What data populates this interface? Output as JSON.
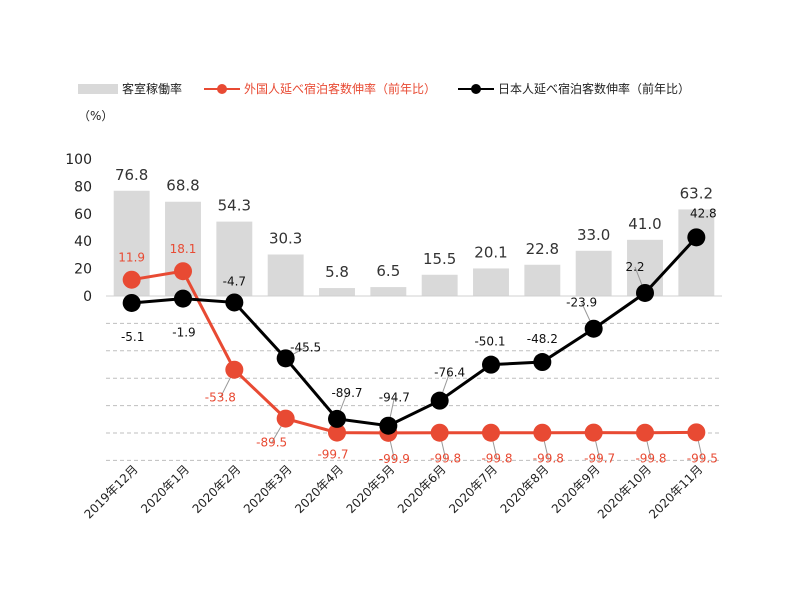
{
  "chart_data": {
    "type": "bar+line",
    "unit": "（%）",
    "categories": [
      "2019年12月",
      "2020年1月",
      "2020年2月",
      "2020年3月",
      "2020年4月",
      "2020年5月",
      "2020年6月",
      "2020年7月",
      "2020年8月",
      "2020年9月",
      "2020年10月",
      "2020年11月"
    ],
    "y_ticks": [
      100,
      80,
      60,
      40,
      20,
      0
    ],
    "ylim": [
      -120,
      100
    ],
    "grid": "dashed below zero",
    "legend_position": "top",
    "series": [
      {
        "name": "客室稼働率",
        "kind": "bar",
        "color": "#d9d9d9",
        "label_color": "#333333",
        "values": [
          76.8,
          68.8,
          54.3,
          30.3,
          5.8,
          6.5,
          15.5,
          20.1,
          22.8,
          33.0,
          41.0,
          63.2
        ],
        "labels": [
          "76.8",
          "68.8",
          "54.3",
          "30.3",
          "5.8",
          "6.5",
          "15.5",
          "20.1",
          "22.8",
          "33.0",
          "41.0",
          "63.2"
        ]
      },
      {
        "name": "外国人延べ宿泊客数伸率（前年比）",
        "kind": "line",
        "color": "#e84a33",
        "label_color": "#e84a33",
        "values": [
          11.9,
          18.1,
          -53.8,
          -89.5,
          -99.7,
          -99.9,
          -99.8,
          -99.8,
          -99.8,
          -99.7,
          -99.8,
          -99.5
        ],
        "labels": [
          "11.9",
          "18.1",
          "-53.8",
          "-89.5",
          "-99.7",
          "-99.9",
          "-99.8",
          "-99.8",
          "-99.8",
          "-99.7",
          "-99.8",
          "-99.5"
        ]
      },
      {
        "name": "日本人延べ宿泊客数伸率（前年比）",
        "kind": "line",
        "color": "#000000",
        "label_color": "#111111",
        "values": [
          -5.1,
          -1.9,
          -4.7,
          -45.5,
          -89.7,
          -94.7,
          -76.4,
          -50.1,
          -48.2,
          -23.9,
          2.2,
          42.8
        ],
        "labels": [
          "-5.1",
          "-1.9",
          "-4.7",
          "-45.5",
          "-89.7",
          "-94.7",
          "-76.4",
          "-50.1",
          "-48.2",
          "-23.9",
          "2.2",
          "42.8"
        ]
      }
    ]
  }
}
